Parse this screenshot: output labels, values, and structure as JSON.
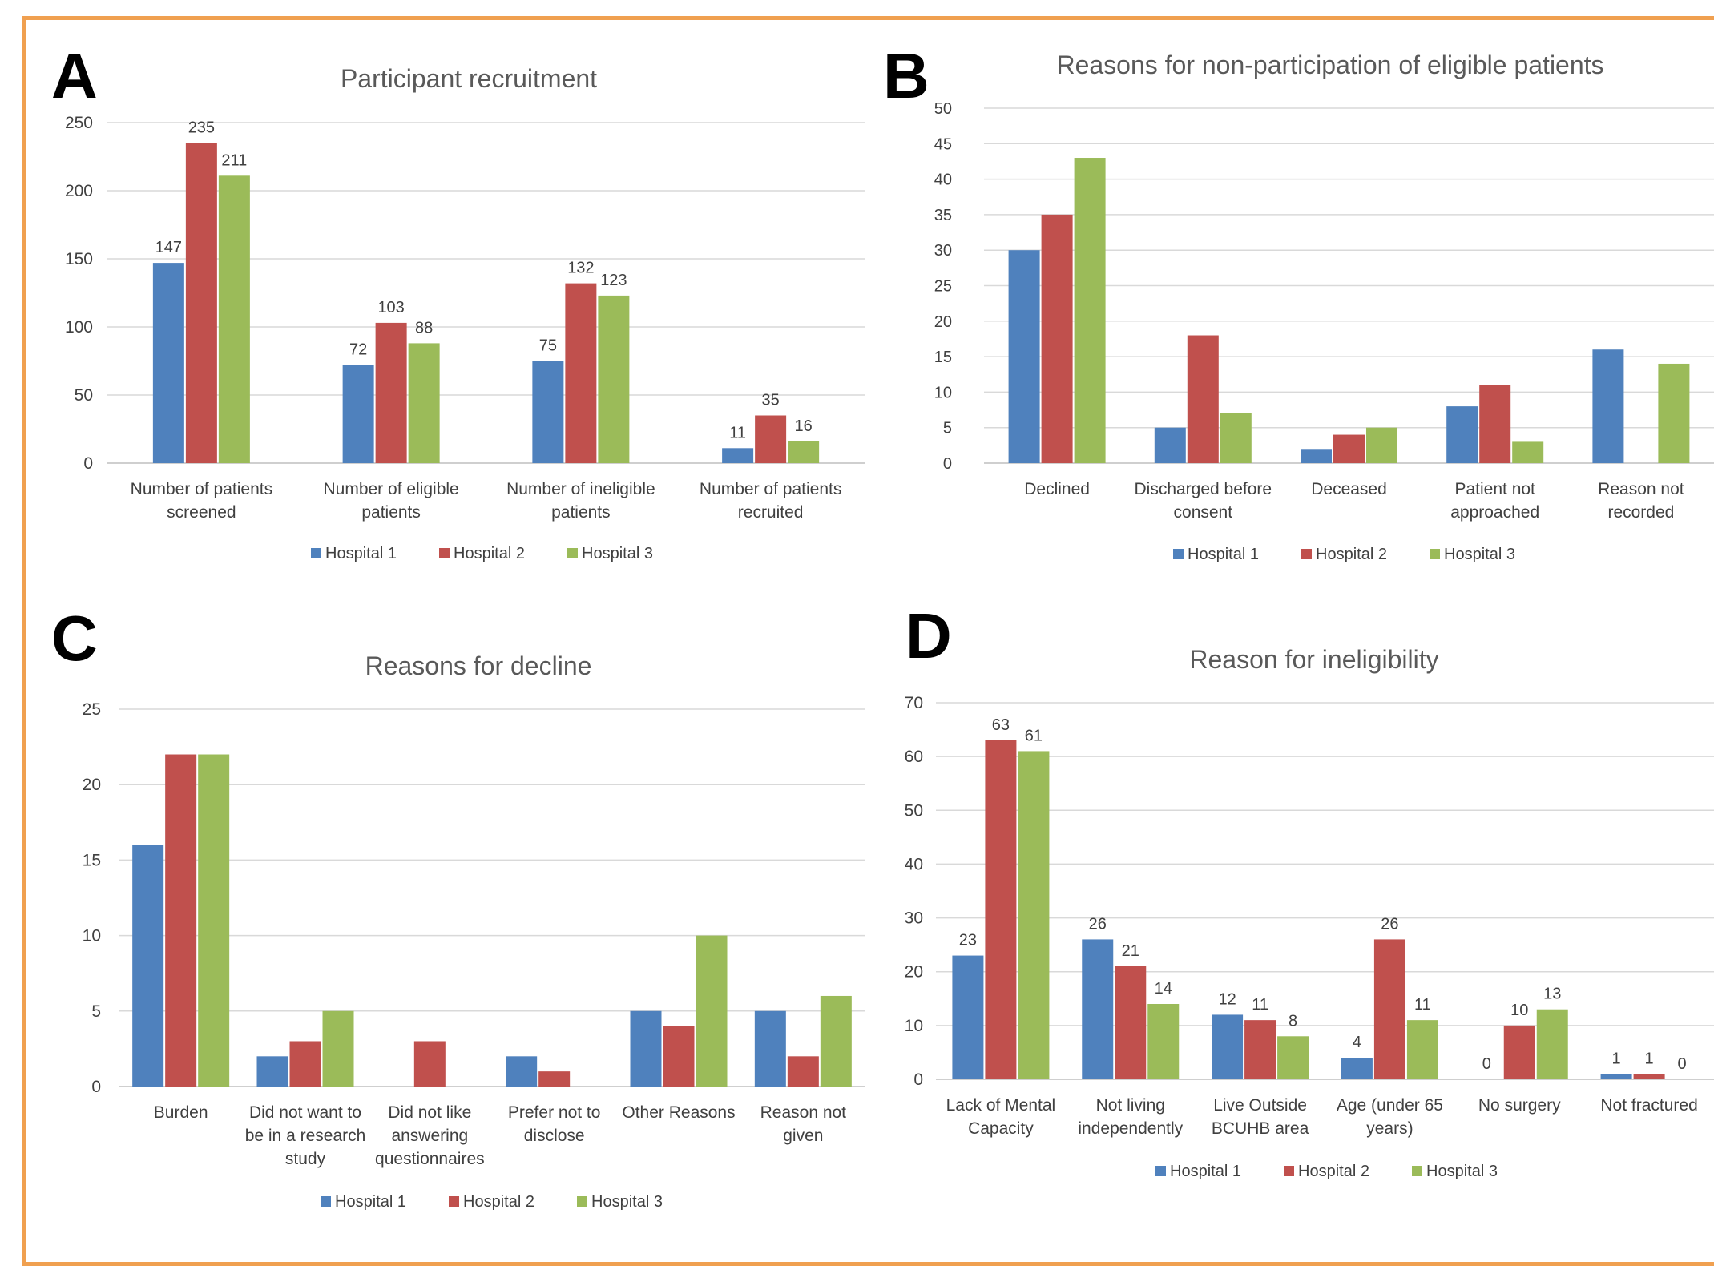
{
  "colors": {
    "frame": "#f0a050",
    "grid": "#d9d9d9",
    "axis": "#bfbfbf",
    "text": "#404040",
    "series": [
      "#4f81bd",
      "#c0504d",
      "#9bbb59"
    ]
  },
  "chart_data": [
    {
      "panel": "A",
      "type": "bar",
      "title": "Participant recruitment",
      "categories": [
        [
          "Number of patients",
          "screened"
        ],
        [
          "Number of eligible",
          "patients"
        ],
        [
          "Number of ineligible",
          "patients"
        ],
        [
          "Number of patients",
          "recruited"
        ]
      ],
      "series": [
        {
          "name": "Hospital 1",
          "values": [
            147,
            72,
            75,
            11
          ]
        },
        {
          "name": "Hospital 2",
          "values": [
            235,
            103,
            132,
            35
          ]
        },
        {
          "name": "Hospital 3",
          "values": [
            211,
            88,
            123,
            16
          ]
        }
      ],
      "ylim": [
        0,
        250
      ],
      "yticks": [
        0,
        50,
        100,
        150,
        200,
        250
      ],
      "data_labels": true,
      "grid": true,
      "legend": "bottom"
    },
    {
      "panel": "B",
      "type": "bar",
      "title": "Reasons for non-participation of eligible patients",
      "categories": [
        [
          "Declined"
        ],
        [
          "Discharged before",
          "consent"
        ],
        [
          "Deceased"
        ],
        [
          "Patient not",
          "approached"
        ],
        [
          "Reason not",
          "recorded"
        ]
      ],
      "series": [
        {
          "name": "Hospital 1",
          "values": [
            30,
            5,
            2,
            8,
            16
          ]
        },
        {
          "name": "Hospital 2",
          "values": [
            35,
            18,
            4,
            11,
            0
          ]
        },
        {
          "name": "Hospital 3",
          "values": [
            43,
            7,
            5,
            3,
            14
          ]
        }
      ],
      "ylim": [
        0,
        50
      ],
      "yticks": [
        0,
        5,
        10,
        15,
        20,
        25,
        30,
        35,
        40,
        45,
        50
      ],
      "data_labels": false,
      "grid": true,
      "legend": "bottom"
    },
    {
      "panel": "C",
      "type": "bar",
      "title": "Reasons for decline",
      "categories": [
        [
          "Burden"
        ],
        [
          "Did not want to",
          "be in a research",
          "study"
        ],
        [
          "Did not like",
          "answering",
          "questionnaires"
        ],
        [
          "Prefer not to",
          "disclose"
        ],
        [
          "Other Reasons"
        ],
        [
          "Reason not",
          "given"
        ]
      ],
      "series": [
        {
          "name": "Hospital 1",
          "values": [
            16,
            2,
            0,
            2,
            5,
            5
          ]
        },
        {
          "name": "Hospital 2",
          "values": [
            22,
            3,
            3,
            1,
            4,
            2
          ]
        },
        {
          "name": "Hospital 3",
          "values": [
            22,
            5,
            0,
            0,
            10,
            6
          ]
        }
      ],
      "ylim": [
        0,
        25
      ],
      "yticks": [
        0,
        5,
        10,
        15,
        20,
        25
      ],
      "data_labels": false,
      "grid": true,
      "legend": "bottom"
    },
    {
      "panel": "D",
      "type": "bar",
      "title": "Reason for ineligibility",
      "categories": [
        [
          "Lack of Mental",
          "Capacity"
        ],
        [
          "Not living",
          "independently"
        ],
        [
          "Live Outside",
          "BCUHB area"
        ],
        [
          "Age (under 65",
          "years)"
        ],
        [
          "No surgery"
        ],
        [
          "Not fractured"
        ]
      ],
      "series": [
        {
          "name": "Hospital 1",
          "values": [
            23,
            26,
            12,
            4,
            0,
            1
          ]
        },
        {
          "name": "Hospital 2",
          "values": [
            63,
            21,
            11,
            26,
            10,
            1
          ]
        },
        {
          "name": "Hospital 3",
          "values": [
            61,
            14,
            8,
            11,
            13,
            0
          ]
        }
      ],
      "ylim": [
        0,
        70
      ],
      "yticks": [
        0,
        10,
        20,
        30,
        40,
        50,
        60,
        70
      ],
      "data_labels": true,
      "grid": true,
      "legend": "bottom"
    }
  ]
}
